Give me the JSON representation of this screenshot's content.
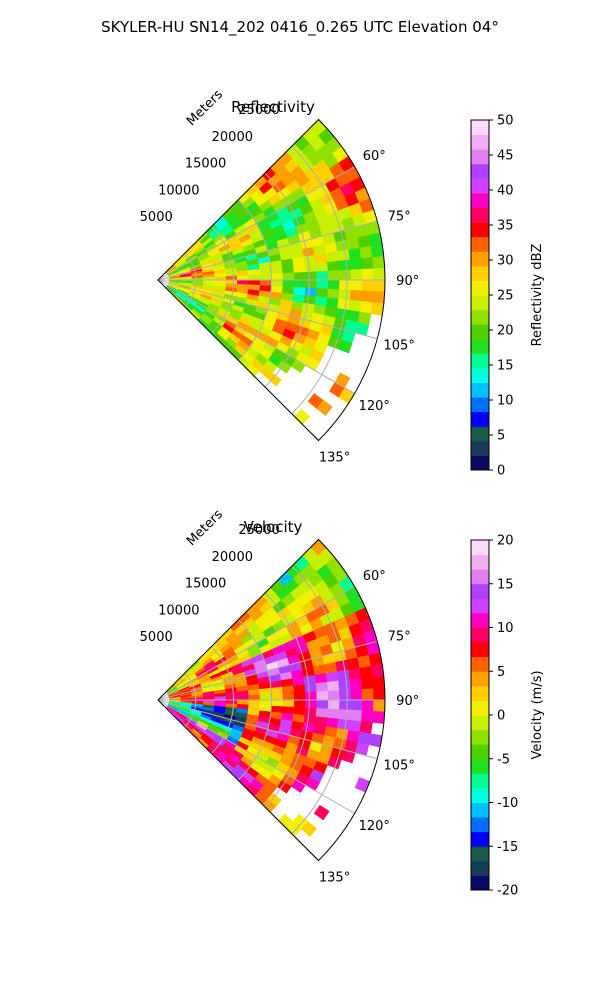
{
  "figure": {
    "title": "SKYLER-HU  SN14_202  0416_0.265 UTC Elevation 04°"
  },
  "chart_data": [
    {
      "type": "heatmap",
      "projection": "polar-sector",
      "title": "Reflectivity",
      "range_label": "Meters",
      "range_ticks": [
        "5000",
        "10000",
        "15000",
        "20000",
        "25000"
      ],
      "range_values": [
        5000,
        10000,
        15000,
        20000,
        25000
      ],
      "range_max": 30000,
      "azimuth_range": [
        45,
        135
      ],
      "azimuth_ticks": [
        "60°",
        "75°",
        "90°",
        "105°",
        "120°",
        "135°"
      ],
      "azimuth_values": [
        60,
        75,
        90,
        105,
        120,
        135
      ],
      "colorbar": {
        "label": "Reflectivity dBZ",
        "min": 0,
        "max": 50,
        "ticks": [
          "0",
          "5",
          "10",
          "15",
          "20",
          "25",
          "30",
          "35",
          "40",
          "45",
          "50"
        ],
        "tick_values": [
          0,
          5,
          10,
          15,
          20,
          25,
          30,
          35,
          40,
          45,
          50
        ],
        "colors": [
          "#0a0a60",
          "#1a3a5a",
          "#1a5a4a",
          "#0000ff",
          "#0070ff",
          "#00c0ff",
          "#00ffdc",
          "#00ff90",
          "#20e020",
          "#50d000",
          "#90e000",
          "#c8f000",
          "#f0f000",
          "#ffd000",
          "#ffa000",
          "#ff6000",
          "#ff0000",
          "#ff0060",
          "#ff00c0",
          "#d040ff",
          "#b040ff",
          "#e080f0",
          "#f0b0f0",
          "#fcd8fc"
        ]
      },
      "field_mean": 24,
      "field_spread": 7
    },
    {
      "type": "heatmap",
      "projection": "polar-sector",
      "title": "Velocity",
      "range_label": "Meters",
      "range_ticks": [
        "5000",
        "10000",
        "15000",
        "20000",
        "25000"
      ],
      "range_values": [
        5000,
        10000,
        15000,
        20000,
        25000
      ],
      "range_max": 30000,
      "azimuth_range": [
        45,
        135
      ],
      "azimuth_ticks": [
        "60°",
        "75°",
        "90°",
        "105°",
        "120°",
        "135°"
      ],
      "azimuth_values": [
        60,
        75,
        90,
        105,
        120,
        135
      ],
      "colorbar": {
        "label": "Velocity (m/s)",
        "min": -20,
        "max": 20,
        "ticks": [
          "-20",
          "-15",
          "-10",
          "-5",
          "0",
          "5",
          "10",
          "15",
          "20"
        ],
        "tick_values": [
          -20,
          -15,
          -10,
          -5,
          0,
          5,
          10,
          15,
          20
        ],
        "colors": [
          "#0a0a60",
          "#1a3a5a",
          "#1a5a4a",
          "#0000ff",
          "#0070ff",
          "#00c0ff",
          "#00ffdc",
          "#00ff90",
          "#20e020",
          "#50d000",
          "#90e000",
          "#c8f000",
          "#f0f000",
          "#ffd000",
          "#ffa000",
          "#ff6000",
          "#ff0000",
          "#ff0060",
          "#ff00c0",
          "#d040ff",
          "#b040ff",
          "#e080f0",
          "#f0b0f0",
          "#fcd8fc"
        ]
      },
      "field_mean": 8,
      "field_spread": 6
    }
  ]
}
